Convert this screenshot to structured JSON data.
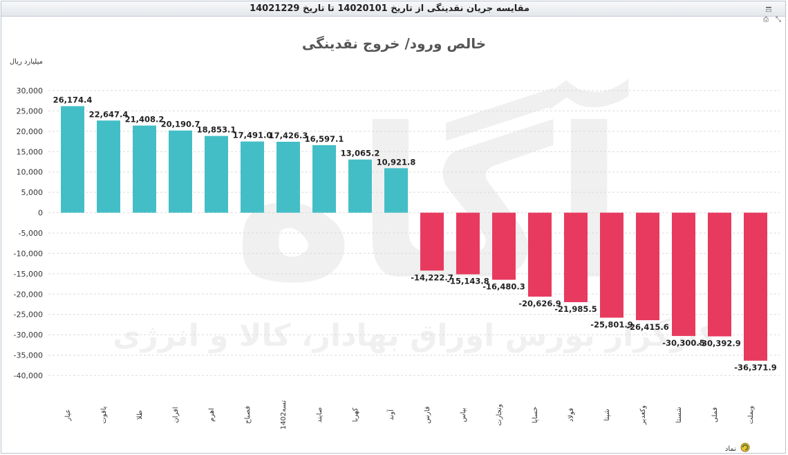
{
  "header": {
    "title": "مقایسه جریان نقدینگی از تاریخ 14020101 تا تاریخ 14021229",
    "window_icons": [
      "minimize-icon",
      "maximize-icon",
      "print-icon",
      "fullscreen-icon"
    ]
  },
  "watermark": {
    "logo_text": "آگاه",
    "caption": "کارگزار بورس اوراق بهادار، کالا و انرژی"
  },
  "chart_data": {
    "type": "bar",
    "title": "خالص ورود/ خروج نقدینگی",
    "ylabel": "میلیارد ریال",
    "xlabel": "نماد",
    "ylim": [
      -40000,
      30000
    ],
    "yticks": [
      30000,
      25000,
      20000,
      15000,
      10000,
      5000,
      0,
      -5000,
      -10000,
      -15000,
      -20000,
      -25000,
      -30000,
      -35000,
      -40000
    ],
    "ytick_labels": [
      "30,000",
      "25,000",
      "20,000",
      "15,000",
      "10,000",
      "5,000",
      "0",
      "-5,000",
      "-10,000",
      "-15,000",
      "-20,000",
      "-25,000",
      "-30,000",
      "-35,000",
      "-40,000"
    ],
    "grid": true,
    "legend": "none",
    "colors": {
      "positive": "#44bec6",
      "negative": "#e83a5f",
      "grid": "#d9d9d9"
    },
    "categories": [
      "عیار",
      "یاقوت",
      "طلا",
      "افران",
      "اهرم",
      "فصباح",
      "تسه1402",
      "صایند",
      "کهربا",
      "آوند",
      "فارس",
      "بپاس",
      "وتجارت",
      "خساپا",
      "فولاد",
      "شپنا",
      "وکغدیر",
      "شستا",
      "فملی",
      "وبملت"
    ],
    "values": [
      26174.4,
      22647.4,
      21408.2,
      20190.7,
      18853.1,
      17491.0,
      17426.3,
      16597.1,
      13065.2,
      10921.8,
      -14222.7,
      -15143.8,
      -16480.3,
      -20626.9,
      -21985.5,
      -25801.9,
      -26415.6,
      -30300.5,
      -30392.9,
      -36371.9
    ],
    "value_labels": [
      "26,174.4",
      "22,647.4",
      "21,408.2",
      "20,190.7",
      "18,853.1",
      "17,491.0",
      "17,426.3",
      "16,597.1",
      "13,065.2",
      "10,921.8",
      "-14,222.7",
      "-15,143.8",
      "-16,480.3",
      "-20,626.9",
      "-21,985.5",
      "-25,801.9",
      "-26,415.6",
      "-30,300.5",
      "-30,392.9",
      "-36,371.9"
    ]
  }
}
